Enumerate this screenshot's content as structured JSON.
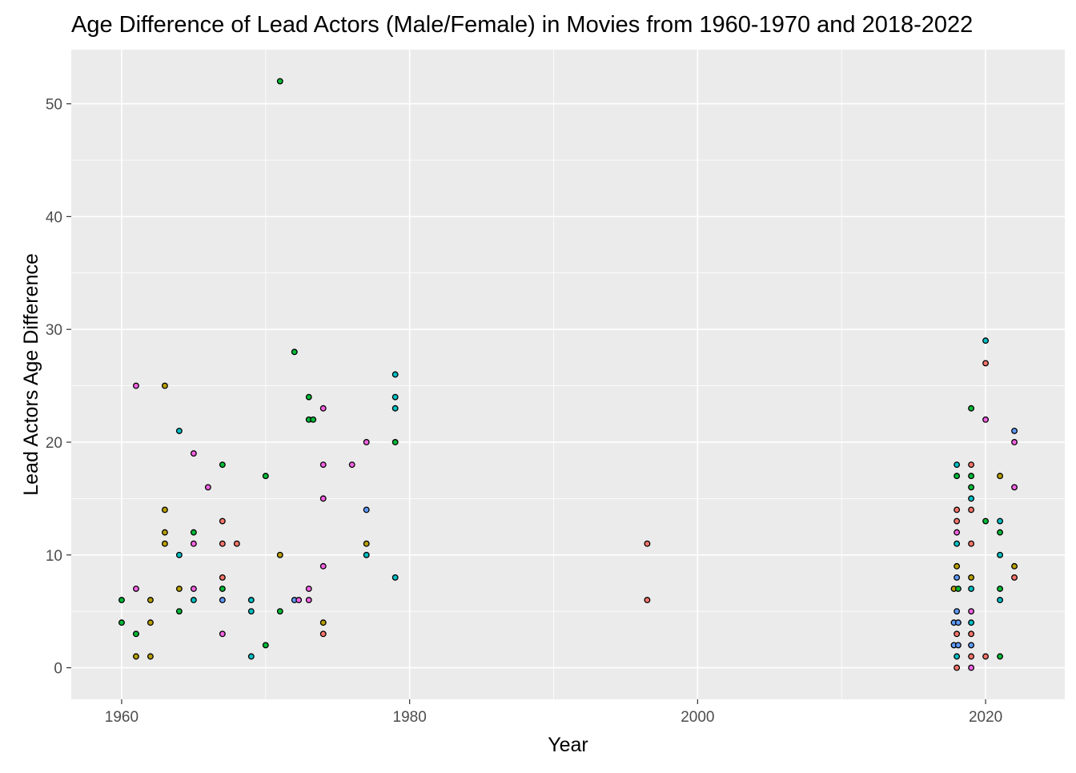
{
  "chart_data": {
    "type": "scatter",
    "title": "Age Difference of Lead Actors (Male/Female) in Movies from 1960-1970 and 2018-2022",
    "xlabel": "Year",
    "ylabel": "Lead Actors Age Difference",
    "xlim": [
      1956.5,
      2025.5
    ],
    "ylim": [
      -2.8,
      54.8
    ],
    "x_ticks": [
      1960,
      1980,
      2000,
      2020
    ],
    "x_tick_labels": [
      "1960",
      "1980",
      "2000",
      "2020"
    ],
    "y_ticks": [
      0,
      10,
      20,
      30,
      40,
      50
    ],
    "y_tick_labels": [
      "0",
      "10",
      "20",
      "30",
      "40",
      "50"
    ],
    "grid": true,
    "legend": "none",
    "colors": {
      "panel_background": "#EBEBEB",
      "grid": "#FFFFFF",
      "point_outline": "#000000",
      "point_fills": [
        "#F8766D",
        "#B79F00",
        "#00BA38",
        "#00BFC4",
        "#619CFF",
        "#F564E3"
      ]
    },
    "points": [
      {
        "x": 1960,
        "y": 6,
        "fill": "#00BA38"
      },
      {
        "x": 1960,
        "y": 4,
        "fill": "#00BA38"
      },
      {
        "x": 1961,
        "y": 25,
        "fill": "#F564E3"
      },
      {
        "x": 1961,
        "y": 7,
        "fill": "#F564E3"
      },
      {
        "x": 1961,
        "y": 3,
        "fill": "#00BA38"
      },
      {
        "x": 1961,
        "y": 1,
        "fill": "#B79F00"
      },
      {
        "x": 1962,
        "y": 6,
        "fill": "#B79F00"
      },
      {
        "x": 1962,
        "y": 4,
        "fill": "#B79F00"
      },
      {
        "x": 1962,
        "y": 1,
        "fill": "#B79F00"
      },
      {
        "x": 1963,
        "y": 25,
        "fill": "#B79F00"
      },
      {
        "x": 1963,
        "y": 14,
        "fill": "#B79F00"
      },
      {
        "x": 1963,
        "y": 12,
        "fill": "#B79F00"
      },
      {
        "x": 1963,
        "y": 11,
        "fill": "#B79F00"
      },
      {
        "x": 1964,
        "y": 21,
        "fill": "#00BFC4"
      },
      {
        "x": 1964,
        "y": 10,
        "fill": "#00BFC4"
      },
      {
        "x": 1964,
        "y": 7,
        "fill": "#B79F00"
      },
      {
        "x": 1964,
        "y": 5,
        "fill": "#00BA38"
      },
      {
        "x": 1965,
        "y": 19,
        "fill": "#F564E3"
      },
      {
        "x": 1965,
        "y": 12,
        "fill": "#00BA38"
      },
      {
        "x": 1965,
        "y": 11,
        "fill": "#F564E3"
      },
      {
        "x": 1965,
        "y": 7,
        "fill": "#F564E3"
      },
      {
        "x": 1965,
        "y": 6,
        "fill": "#00BFC4"
      },
      {
        "x": 1966,
        "y": 16,
        "fill": "#F564E3"
      },
      {
        "x": 1967,
        "y": 18,
        "fill": "#00BA38"
      },
      {
        "x": 1967,
        "y": 13,
        "fill": "#F8766D"
      },
      {
        "x": 1967,
        "y": 11,
        "fill": "#F8766D"
      },
      {
        "x": 1967,
        "y": 8,
        "fill": "#F8766D"
      },
      {
        "x": 1967,
        "y": 7,
        "fill": "#00BA38"
      },
      {
        "x": 1967,
        "y": 6,
        "fill": "#619CFF"
      },
      {
        "x": 1967,
        "y": 3,
        "fill": "#F564E3"
      },
      {
        "x": 1968,
        "y": 11,
        "fill": "#F8766D"
      },
      {
        "x": 1969,
        "y": 6,
        "fill": "#00BFC4"
      },
      {
        "x": 1969,
        "y": 5,
        "fill": "#00BFC4"
      },
      {
        "x": 1969,
        "y": 1,
        "fill": "#00BFC4"
      },
      {
        "x": 1970,
        "y": 17,
        "fill": "#00BA38"
      },
      {
        "x": 1970,
        "y": 2,
        "fill": "#00BA38"
      },
      {
        "x": 1971,
        "y": 52,
        "fill": "#00BA38"
      },
      {
        "x": 1971,
        "y": 10,
        "fill": "#B79F00"
      },
      {
        "x": 1971,
        "y": 5,
        "fill": "#00BA38"
      },
      {
        "x": 1972,
        "y": 28,
        "fill": "#00BA38"
      },
      {
        "x": 1972,
        "y": 6,
        "fill": "#619CFF"
      },
      {
        "x": 1972.3,
        "y": 6,
        "fill": "#F564E3"
      },
      {
        "x": 1973,
        "y": 24,
        "fill": "#00BA38"
      },
      {
        "x": 1973,
        "y": 22,
        "fill": "#00BA38"
      },
      {
        "x": 1973.3,
        "y": 22,
        "fill": "#00BA38"
      },
      {
        "x": 1973,
        "y": 7,
        "fill": "#F564E3"
      },
      {
        "x": 1973,
        "y": 6,
        "fill": "#F564E3"
      },
      {
        "x": 1974,
        "y": 23,
        "fill": "#F564E3"
      },
      {
        "x": 1974,
        "y": 18,
        "fill": "#F564E3"
      },
      {
        "x": 1974,
        "y": 15,
        "fill": "#F564E3"
      },
      {
        "x": 1974,
        "y": 9,
        "fill": "#F564E3"
      },
      {
        "x": 1974,
        "y": 4,
        "fill": "#B79F00"
      },
      {
        "x": 1974,
        "y": 3,
        "fill": "#F8766D"
      },
      {
        "x": 1976,
        "y": 18,
        "fill": "#F564E3"
      },
      {
        "x": 1977,
        "y": 20,
        "fill": "#F564E3"
      },
      {
        "x": 1977,
        "y": 14,
        "fill": "#619CFF"
      },
      {
        "x": 1977,
        "y": 11,
        "fill": "#B79F00"
      },
      {
        "x": 1977,
        "y": 10,
        "fill": "#00BFC4"
      },
      {
        "x": 1979,
        "y": 26,
        "fill": "#00BFC4"
      },
      {
        "x": 1979,
        "y": 24,
        "fill": "#00BFC4"
      },
      {
        "x": 1979,
        "y": 23,
        "fill": "#00BFC4"
      },
      {
        "x": 1979,
        "y": 20,
        "fill": "#00BA38"
      },
      {
        "x": 1979,
        "y": 8,
        "fill": "#00BFC4"
      },
      {
        "x": 1996.5,
        "y": 11,
        "fill": "#F8766D"
      },
      {
        "x": 1996.5,
        "y": 6,
        "fill": "#F8766D"
      },
      {
        "x": 2018,
        "y": 18,
        "fill": "#00BFC4"
      },
      {
        "x": 2018,
        "y": 17,
        "fill": "#00BA38"
      },
      {
        "x": 2018,
        "y": 14,
        "fill": "#F8766D"
      },
      {
        "x": 2018,
        "y": 13,
        "fill": "#F8766D"
      },
      {
        "x": 2018,
        "y": 12,
        "fill": "#F564E3"
      },
      {
        "x": 2018,
        "y": 11,
        "fill": "#00BFC4"
      },
      {
        "x": 2018,
        "y": 9,
        "fill": "#B79F00"
      },
      {
        "x": 2018,
        "y": 8,
        "fill": "#619CFF"
      },
      {
        "x": 2017.8,
        "y": 7,
        "fill": "#B79F00"
      },
      {
        "x": 2018.1,
        "y": 7,
        "fill": "#00BA38"
      },
      {
        "x": 2018,
        "y": 5,
        "fill": "#619CFF"
      },
      {
        "x": 2017.8,
        "y": 4,
        "fill": "#619CFF"
      },
      {
        "x": 2018.1,
        "y": 4,
        "fill": "#619CFF"
      },
      {
        "x": 2018,
        "y": 3,
        "fill": "#F8766D"
      },
      {
        "x": 2017.8,
        "y": 2,
        "fill": "#619CFF"
      },
      {
        "x": 2018.1,
        "y": 2,
        "fill": "#619CFF"
      },
      {
        "x": 2018,
        "y": 1,
        "fill": "#00BFC4"
      },
      {
        "x": 2018,
        "y": 0,
        "fill": "#F8766D"
      },
      {
        "x": 2019,
        "y": 23,
        "fill": "#00BA38"
      },
      {
        "x": 2019,
        "y": 18,
        "fill": "#F8766D"
      },
      {
        "x": 2019,
        "y": 17,
        "fill": "#00BA38"
      },
      {
        "x": 2019,
        "y": 16,
        "fill": "#00BA38"
      },
      {
        "x": 2019,
        "y": 15,
        "fill": "#00BFC4"
      },
      {
        "x": 2019,
        "y": 14,
        "fill": "#F8766D"
      },
      {
        "x": 2019,
        "y": 11,
        "fill": "#F8766D"
      },
      {
        "x": 2019,
        "y": 8,
        "fill": "#B79F00"
      },
      {
        "x": 2019,
        "y": 7,
        "fill": "#00BFC4"
      },
      {
        "x": 2019,
        "y": 5,
        "fill": "#F564E3"
      },
      {
        "x": 2019,
        "y": 4,
        "fill": "#00BFC4"
      },
      {
        "x": 2019,
        "y": 3,
        "fill": "#F8766D"
      },
      {
        "x": 2019,
        "y": 2,
        "fill": "#619CFF"
      },
      {
        "x": 2019,
        "y": 1,
        "fill": "#F8766D"
      },
      {
        "x": 2019,
        "y": 0,
        "fill": "#F564E3"
      },
      {
        "x": 2020,
        "y": 29,
        "fill": "#00BFC4"
      },
      {
        "x": 2020,
        "y": 27,
        "fill": "#F8766D"
      },
      {
        "x": 2020,
        "y": 22,
        "fill": "#F564E3"
      },
      {
        "x": 2020,
        "y": 13,
        "fill": "#00BA38"
      },
      {
        "x": 2020,
        "y": 1,
        "fill": "#F8766D"
      },
      {
        "x": 2021,
        "y": 17,
        "fill": "#B79F00"
      },
      {
        "x": 2021,
        "y": 13,
        "fill": "#00BFC4"
      },
      {
        "x": 2021,
        "y": 12,
        "fill": "#00BA38"
      },
      {
        "x": 2021,
        "y": 10,
        "fill": "#00BFC4"
      },
      {
        "x": 2021,
        "y": 7,
        "fill": "#00BA38"
      },
      {
        "x": 2021,
        "y": 6,
        "fill": "#00BFC4"
      },
      {
        "x": 2021,
        "y": 1,
        "fill": "#00BA38"
      },
      {
        "x": 2022,
        "y": 21,
        "fill": "#619CFF"
      },
      {
        "x": 2022,
        "y": 20,
        "fill": "#F564E3"
      },
      {
        "x": 2022,
        "y": 16,
        "fill": "#F564E3"
      },
      {
        "x": 2022,
        "y": 9,
        "fill": "#B79F00"
      },
      {
        "x": 2022,
        "y": 8,
        "fill": "#F8766D"
      }
    ]
  }
}
